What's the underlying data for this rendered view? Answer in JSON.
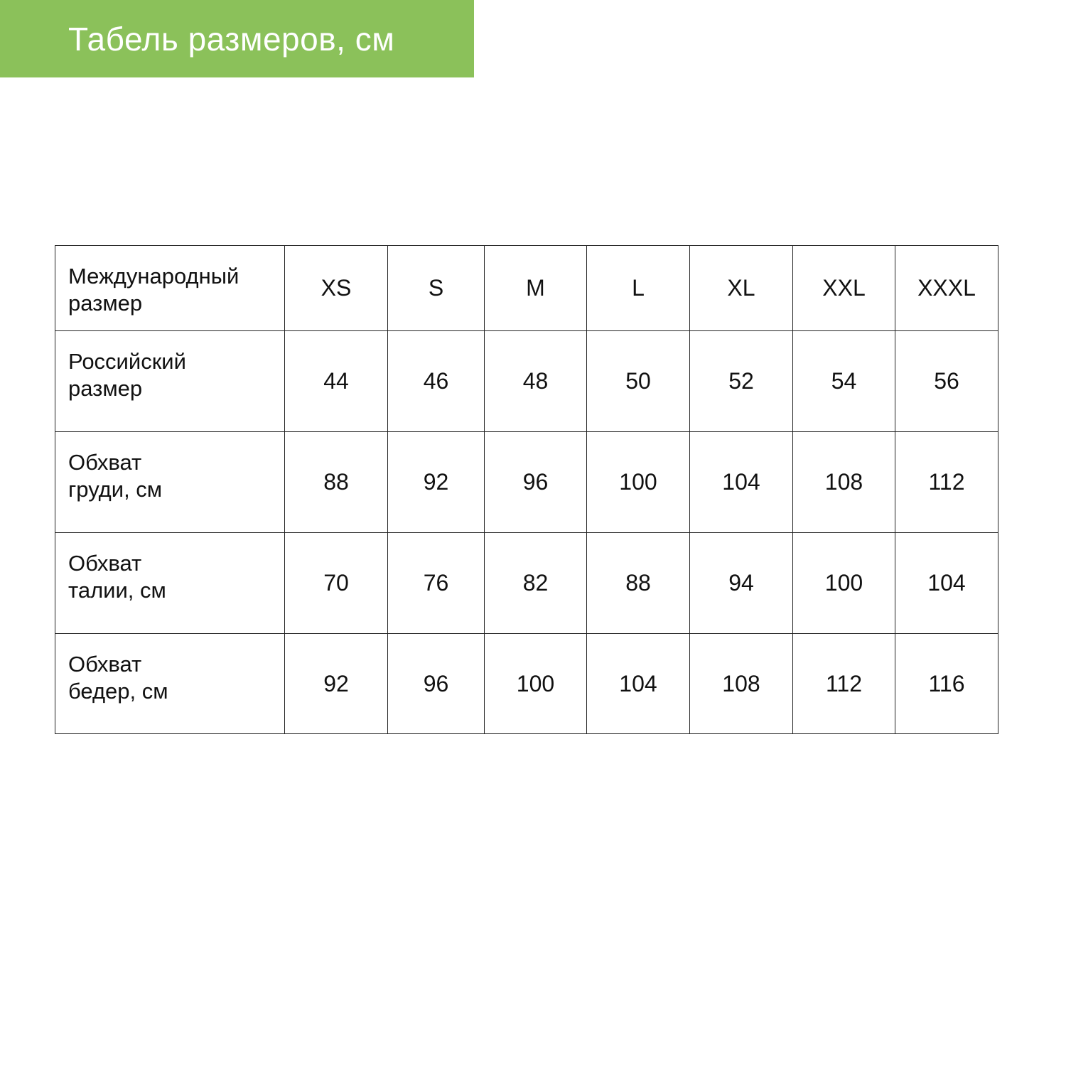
{
  "header": {
    "title": "Табель размеров, см",
    "background": "#8bc15a"
  },
  "table": {
    "rows": [
      {
        "label": [
          "Международный",
          "размер"
        ],
        "values": [
          "XS",
          "S",
          "M",
          "L",
          "XL",
          "XXL",
          "XXXL"
        ]
      },
      {
        "label": [
          "Российский",
          "размер"
        ],
        "values": [
          "44",
          "46",
          "48",
          "50",
          "52",
          "54",
          "56"
        ]
      },
      {
        "label": [
          "Обхват",
          "груди, см"
        ],
        "values": [
          "88",
          "92",
          "96",
          "100",
          "104",
          "108",
          "112"
        ]
      },
      {
        "label": [
          "Обхват",
          "талии, см"
        ],
        "values": [
          "70",
          "76",
          "82",
          "88",
          "94",
          "100",
          "104"
        ]
      },
      {
        "label": [
          "Обхват",
          "бедер, см"
        ],
        "values": [
          "92",
          "96",
          "100",
          "104",
          "108",
          "112",
          "116"
        ]
      }
    ]
  }
}
